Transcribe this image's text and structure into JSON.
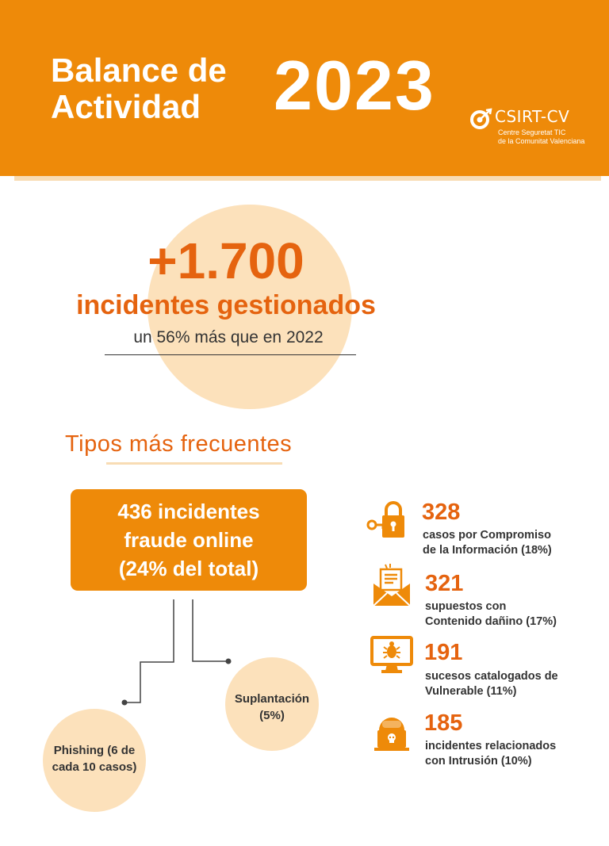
{
  "header": {
    "title_line1": "Balance de",
    "title_line2": "Actividad",
    "year": "2023",
    "logo": {
      "name": "CSIRT-CV",
      "sub_line1": "Centre Seguretat TIC",
      "sub_line2": "de la Comunitat Valenciana"
    }
  },
  "headline": {
    "number": "+1.700",
    "label": "incidentes gestionados",
    "sub": "un 56% más que en 2022"
  },
  "section": {
    "title": "Tipos más frecuentes"
  },
  "fraud": {
    "line1": "436 incidentes",
    "line2": "fraude online",
    "line3": "(24% del total)",
    "subtypes": [
      {
        "line1": "Suplantación",
        "line2": "(5%)"
      },
      {
        "line1": "Phishing (6 de",
        "line2": "cada 10 casos)"
      }
    ]
  },
  "stats": [
    {
      "number": "328",
      "line1": "casos por Compromiso",
      "line2": "de la Información (18%)",
      "icon": "lock-key-icon"
    },
    {
      "number": "321",
      "line1": "supuestos con",
      "line2": "Contenido dañino (17%)",
      "icon": "envelope-document-icon"
    },
    {
      "number": "191",
      "line1": "sucesos catalogados de",
      "line2": "Vulnerable (11%)",
      "icon": "monitor-bug-icon"
    },
    {
      "number": "185",
      "line1": "incidentes relacionados",
      "line2": "con Intrusión (10%)",
      "icon": "hacker-icon"
    }
  ],
  "colors": {
    "orange": "#ee8a09",
    "dark_orange": "#e5630f",
    "peach": "#fce1bb",
    "text": "#333333"
  }
}
